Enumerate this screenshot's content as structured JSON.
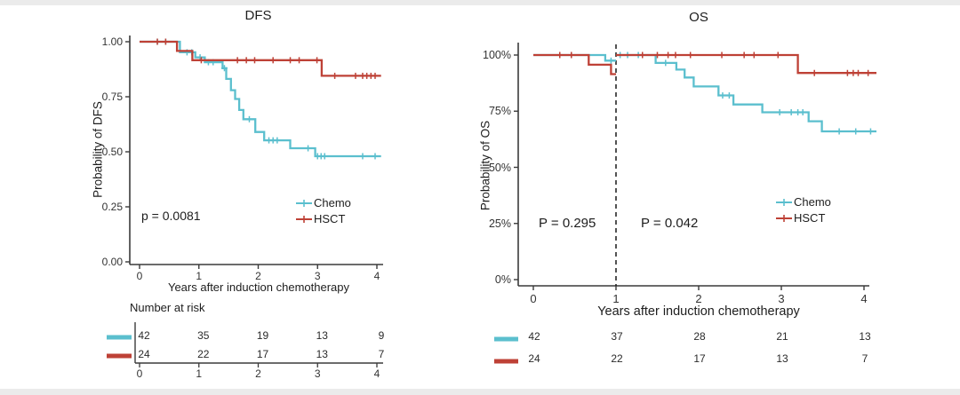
{
  "colors": {
    "chemo": "#5BBFCE",
    "hsct": "#BE4136",
    "axis": "#3a3a3a",
    "text": "#262626"
  },
  "chart_data": [
    {
      "type": "line",
      "subtype": "kaplan_meier",
      "title": "DFS",
      "xlabel": "Years after induction chemotherapy",
      "ylabel": "Probability of DFS",
      "xlim": [
        0,
        4
      ],
      "ylim": [
        0,
        1
      ],
      "grid": false,
      "legend_position": "inside-right",
      "xtick_labels": [
        "0",
        "1",
        "2",
        "3",
        "4"
      ],
      "xtick_values": [
        0,
        1,
        2,
        3,
        4
      ],
      "ytick_labels": [
        "1.00",
        "0.75",
        "0.50",
        "0.25",
        "0.00"
      ],
      "ytick_values": [
        1.0,
        0.75,
        0.5,
        0.25,
        0.0
      ],
      "p_values": [
        {
          "label": "p = 0.0081"
        }
      ],
      "legend": [
        {
          "label": "Chemo",
          "color_key": "chemo"
        },
        {
          "label": "HSCT",
          "color_key": "hsct"
        }
      ],
      "series": [
        {
          "name": "Chemo",
          "color_key": "chemo",
          "segments": [
            {
              "steps": [
                [
                  0,
                  1.0
                ],
                [
                  0.68,
                  0.952
                ],
                [
                  0.94,
                  0.929
                ],
                [
                  1.1,
                  0.907
                ],
                [
                  1.4,
                  0.88
                ],
                [
                  1.46,
                  0.831
                ],
                [
                  1.54,
                  0.78
                ],
                [
                  1.61,
                  0.74
                ],
                [
                  1.68,
                  0.69
                ],
                [
                  1.75,
                  0.648
                ],
                [
                  1.95,
                  0.59
                ],
                [
                  2.1,
                  0.552
                ],
                [
                  2.54,
                  0.516
                ],
                [
                  2.96,
                  0.48
                ]
              ],
              "end": 4.07
            }
          ],
          "censors": [
            [
              0.3,
              1.0
            ],
            [
              0.44,
              1.0
            ],
            [
              0.8,
              0.952
            ],
            [
              0.88,
              0.952
            ],
            [
              1.02,
              0.929
            ],
            [
              1.16,
              0.907
            ],
            [
              1.24,
              0.907
            ],
            [
              1.43,
              0.88
            ],
            [
              1.85,
              0.648
            ],
            [
              2.18,
              0.552
            ],
            [
              2.25,
              0.552
            ],
            [
              2.32,
              0.552
            ],
            [
              2.84,
              0.516
            ],
            [
              3.0,
              0.48
            ],
            [
              3.06,
              0.48
            ],
            [
              3.12,
              0.48
            ],
            [
              3.76,
              0.48
            ],
            [
              3.97,
              0.48
            ]
          ]
        },
        {
          "name": "HSCT",
          "color_key": "hsct",
          "segments": [
            {
              "steps": [
                [
                  0,
                  1.0
                ],
                [
                  0.63,
                  0.958
                ],
                [
                  0.89,
                  0.916
                ],
                [
                  3.07,
                  0.845
                ]
              ],
              "end": 4.07
            }
          ],
          "censors": [
            [
              0.3,
              1.0
            ],
            [
              0.44,
              1.0
            ],
            [
              1.04,
              0.916
            ],
            [
              1.65,
              0.916
            ],
            [
              1.8,
              0.916
            ],
            [
              1.94,
              0.916
            ],
            [
              2.25,
              0.916
            ],
            [
              2.54,
              0.916
            ],
            [
              2.69,
              0.916
            ],
            [
              2.99,
              0.916
            ],
            [
              3.29,
              0.845
            ],
            [
              3.64,
              0.845
            ],
            [
              3.76,
              0.845
            ],
            [
              3.83,
              0.845
            ],
            [
              3.9,
              0.845
            ],
            [
              3.97,
              0.845
            ]
          ]
        }
      ],
      "risk_table": {
        "header": "Number at risk",
        "rows": [
          {
            "name": "Chemo",
            "color_key": "chemo",
            "values": [
              "42",
              "35",
              "19",
              "13",
              "9"
            ]
          },
          {
            "name": "HSCT",
            "color_key": "hsct",
            "values": [
              "24",
              "22",
              "17",
              "13",
              "7"
            ]
          }
        ],
        "axis_labels": [
          "0",
          "1",
          "2",
          "3",
          "4"
        ],
        "show_axis": true
      }
    },
    {
      "type": "line",
      "subtype": "kaplan_meier_landmark",
      "title": "OS",
      "xlabel": "Years after induction chemotherapy",
      "ylabel": "Probability of OS",
      "xlim": [
        0,
        4
      ],
      "ylim": [
        0,
        100
      ],
      "grid": false,
      "legend_position": "inside-right",
      "landmark_vline_x": 1,
      "xtick_labels": [
        "0",
        "1",
        "2",
        "3",
        "4"
      ],
      "xtick_values": [
        0,
        1,
        2,
        3,
        4
      ],
      "ytick_labels": [
        "100%",
        "75%",
        "50%",
        "25%",
        "0%"
      ],
      "ytick_values": [
        100,
        75,
        50,
        25,
        0
      ],
      "p_values": [
        {
          "label": "P = 0.295"
        },
        {
          "label": "P = 0.042"
        }
      ],
      "legend": [
        {
          "label": "Chemo",
          "color_key": "chemo"
        },
        {
          "label": "HSCT",
          "color_key": "hsct"
        }
      ],
      "series": [
        {
          "name": "Chemo",
          "color_key": "chemo",
          "segments": [
            {
              "steps": [
                [
                  0,
                  100
                ],
                [
                  0.87,
                  97.5
                ]
              ],
              "end": 1.0
            },
            {
              "steps": [
                [
                  1.0,
                  100
                ],
                [
                  1.48,
                  96.5
                ],
                [
                  1.73,
                  93.5
                ],
                [
                  1.83,
                  90
                ],
                [
                  1.94,
                  86
                ],
                [
                  2.24,
                  82
                ],
                [
                  2.42,
                  78
                ],
                [
                  2.77,
                  74.5
                ],
                [
                  3.33,
                  70.5
                ],
                [
                  3.49,
                  66
                ]
              ],
              "end": 4.15
            }
          ],
          "censors": [
            [
              0.32,
              100
            ],
            [
              0.46,
              100
            ],
            [
              0.94,
              97.5
            ],
            [
              1.05,
              100
            ],
            [
              1.14,
              100
            ],
            [
              1.27,
              100
            ],
            [
              1.6,
              96.5
            ],
            [
              2.29,
              82
            ],
            [
              2.37,
              82
            ],
            [
              2.98,
              74.5
            ],
            [
              3.12,
              74.5
            ],
            [
              3.2,
              74.5
            ],
            [
              3.26,
              74.5
            ],
            [
              3.7,
              66
            ],
            [
              3.9,
              66
            ],
            [
              4.08,
              66
            ]
          ]
        },
        {
          "name": "HSCT",
          "color_key": "hsct",
          "segments": [
            {
              "steps": [
                [
                  0,
                  100
                ],
                [
                  0.67,
                  95.7
                ],
                [
                  0.94,
                  91.5
                ]
              ],
              "end": 1.0
            },
            {
              "steps": [
                [
                  1.0,
                  100
                ],
                [
                  3.2,
                  92
                ]
              ],
              "end": 4.15
            }
          ],
          "censors": [
            [
              0.32,
              100
            ],
            [
              0.46,
              100
            ],
            [
              1.32,
              100
            ],
            [
              1.5,
              100
            ],
            [
              1.63,
              100
            ],
            [
              1.72,
              100
            ],
            [
              1.9,
              100
            ],
            [
              2.28,
              100
            ],
            [
              2.55,
              100
            ],
            [
              2.67,
              100
            ],
            [
              2.96,
              100
            ],
            [
              3.4,
              92
            ],
            [
              3.8,
              92
            ],
            [
              3.87,
              92
            ],
            [
              3.93,
              92
            ],
            [
              4.05,
              92
            ]
          ]
        }
      ],
      "risk_table": {
        "header": "",
        "rows": [
          {
            "name": "Chemo",
            "color_key": "chemo",
            "values": [
              "42",
              "37",
              "28",
              "21",
              "13"
            ]
          },
          {
            "name": "HSCT",
            "color_key": "hsct",
            "values": [
              "24",
              "22",
              "17",
              "13",
              "7"
            ]
          }
        ],
        "axis_labels": [],
        "show_axis": false
      }
    }
  ]
}
